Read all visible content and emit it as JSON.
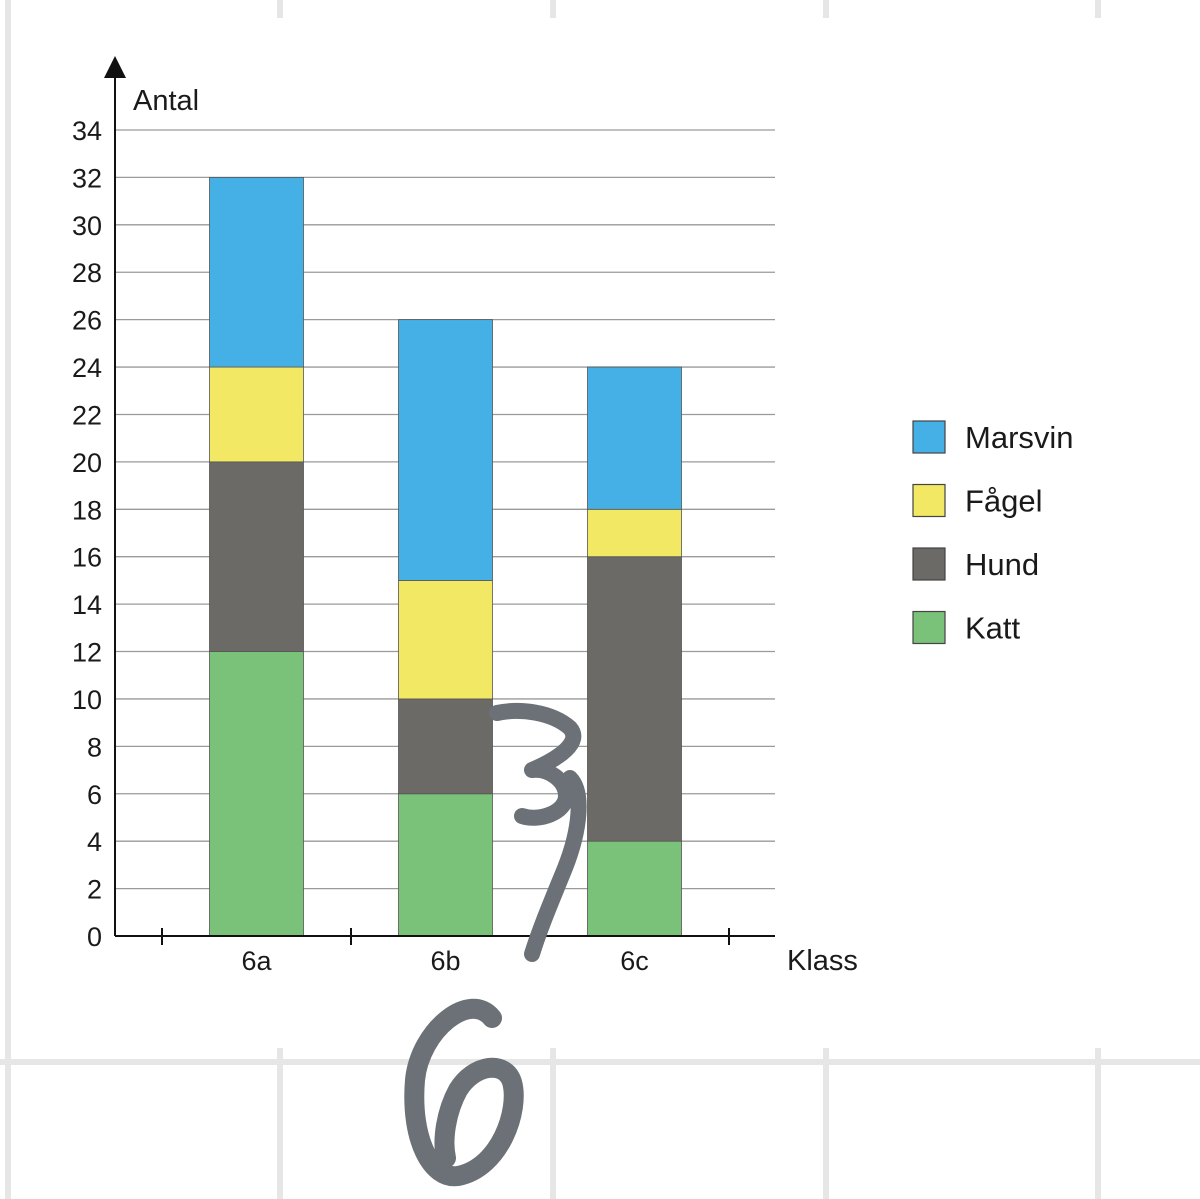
{
  "chart_data": {
    "type": "bar",
    "stacked": true,
    "ylabel": "Antal",
    "xlabel": "Klass",
    "categories": [
      "6a",
      "6b",
      "6c"
    ],
    "ylim": [
      0,
      34
    ],
    "yticks": [
      0,
      2,
      4,
      6,
      8,
      10,
      12,
      14,
      16,
      18,
      20,
      22,
      24,
      26,
      28,
      30,
      32,
      34
    ],
    "grid": true,
    "legend_position": "right",
    "series": [
      {
        "name": "Katt",
        "color": "#7ac17a",
        "values": [
          12,
          6,
          4
        ]
      },
      {
        "name": "Hund",
        "color": "#6b6a66",
        "values": [
          8,
          4,
          12
        ]
      },
      {
        "name": "Fågel",
        "color": "#f2e864",
        "values": [
          4,
          5,
          2
        ]
      },
      {
        "name": "Marsvin",
        "color": "#45b0e6",
        "values": [
          8,
          11,
          6
        ]
      }
    ],
    "legend_order": [
      "Marsvin",
      "Fågel",
      "Hund",
      "Katt"
    ]
  },
  "annotations": {
    "handwritten_note_1": "3",
    "handwritten_note_2": "6",
    "ink_color": "#6b7177"
  },
  "background": {
    "grid_line_color": "#e6e6e6"
  }
}
